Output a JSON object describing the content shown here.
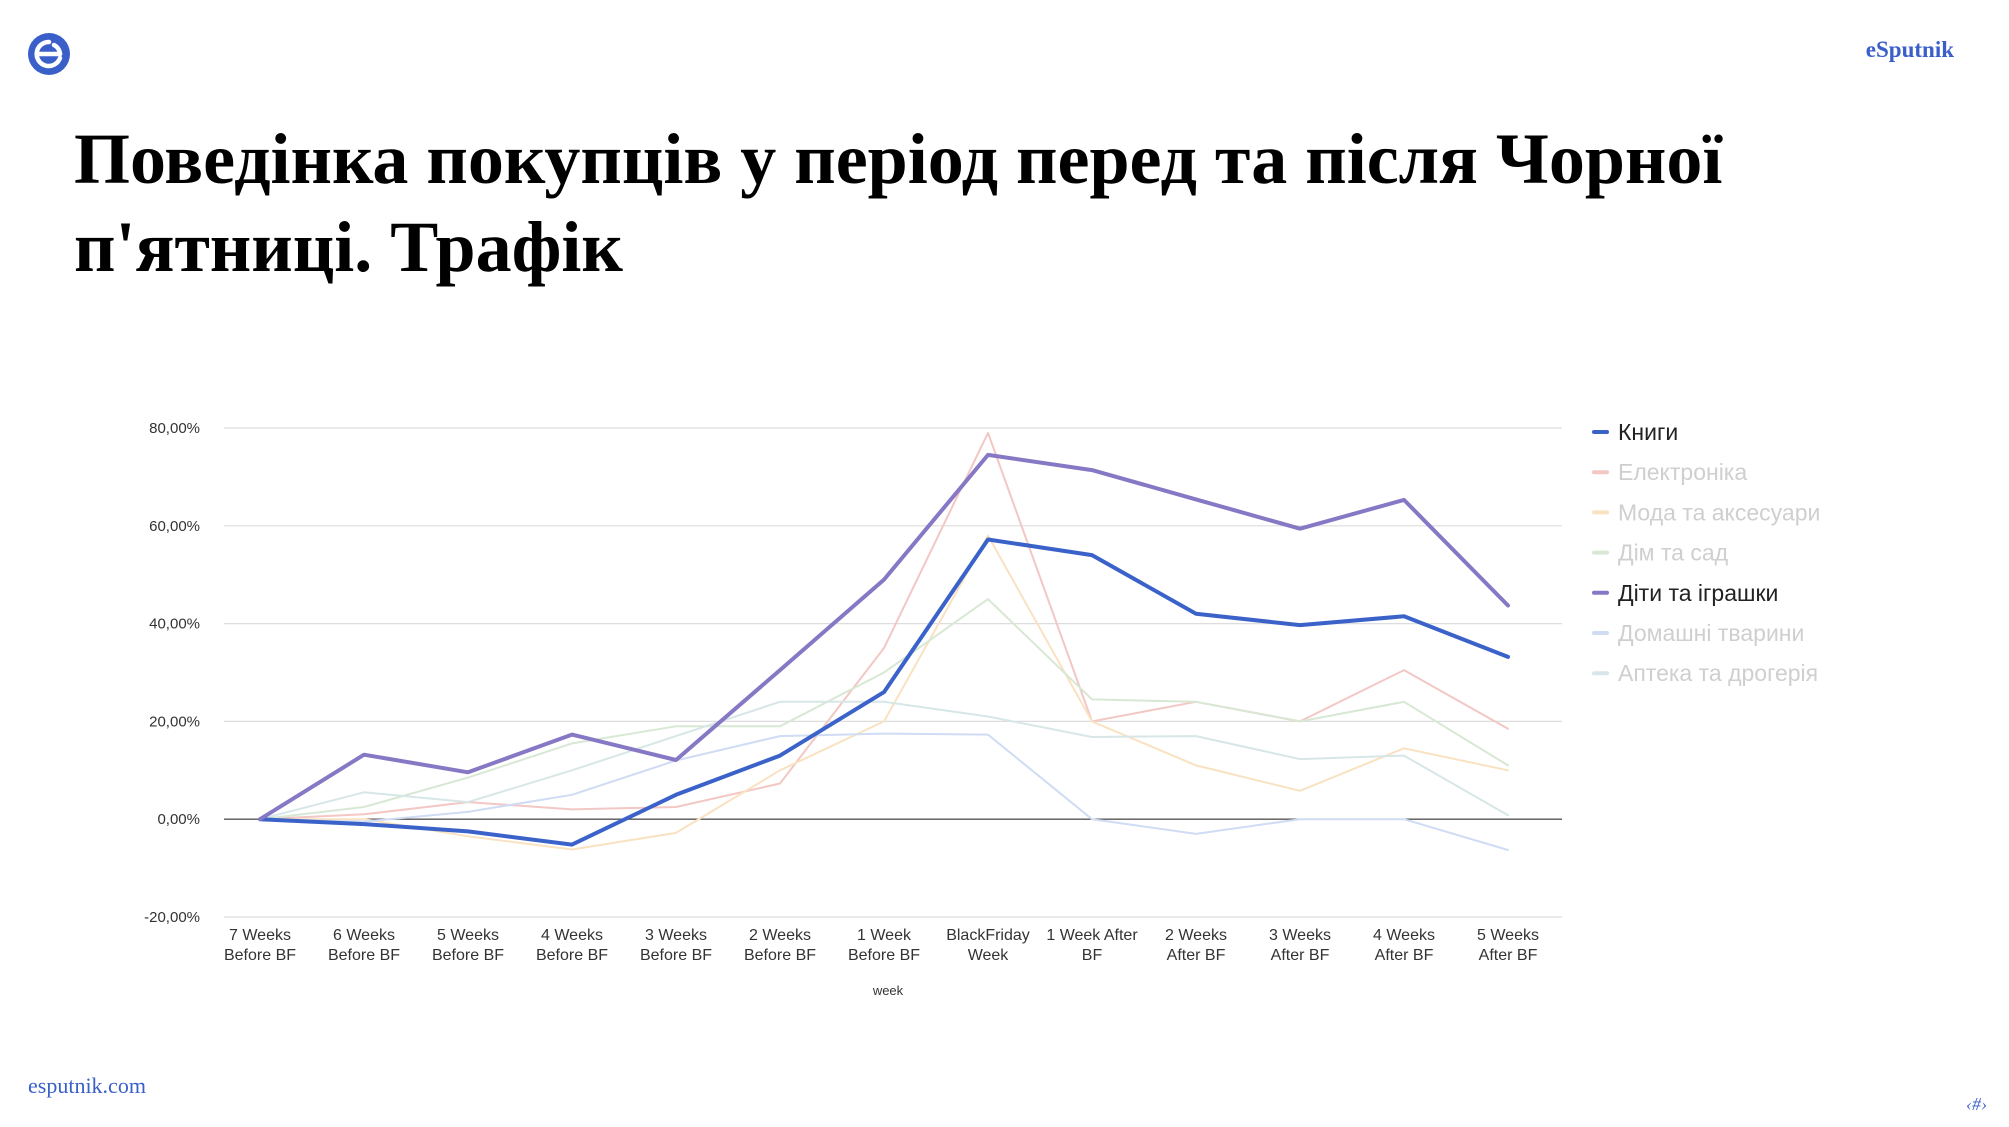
{
  "header": {
    "brand": "eSputnik",
    "logo_icon": "esputnik-logo-icon"
  },
  "title": "Поведінка покупців у період перед та після Чорної п'ятниці. Трафік",
  "footer": {
    "url": "esputnik.com",
    "page_number": "‹#›"
  },
  "colors": {
    "brand_blue": "#3a5fc8"
  },
  "chart_data": {
    "type": "line",
    "title": "",
    "xlabel": "week",
    "ylabel": "",
    "ylim": [
      -0.2,
      0.8
    ],
    "y_ticks": [
      {
        "value": -0.2,
        "label": "-20,00%"
      },
      {
        "value": 0,
        "label": "0,00%"
      },
      {
        "value": 0.2,
        "label": "20,00%"
      },
      {
        "value": 0.4,
        "label": "40,00%"
      },
      {
        "value": 0.6,
        "label": "60,00%"
      },
      {
        "value": 0.8,
        "label": "80,00%"
      }
    ],
    "grid": true,
    "legend_position": "right",
    "categories": [
      [
        "7 Weeks",
        "Before BF"
      ],
      [
        "6 Weeks",
        "Before BF"
      ],
      [
        "5 Weeks",
        "Before BF"
      ],
      [
        "4 Weeks",
        "Before BF"
      ],
      [
        "3 Weeks",
        "Before BF"
      ],
      [
        "2 Weeks",
        "Before BF"
      ],
      [
        "1 Week",
        "Before BF"
      ],
      [
        "BlackFriday",
        "Week"
      ],
      [
        "1 Week After",
        "BF"
      ],
      [
        "2 Weeks",
        "After BF"
      ],
      [
        "3 Weeks",
        "After BF"
      ],
      [
        "4 Weeks",
        "After BF"
      ],
      [
        "5 Weeks",
        "After BF"
      ]
    ],
    "series": [
      {
        "name": "Книги",
        "color": "#3a62c9",
        "emphasis": true,
        "values": [
          0,
          -0.01,
          -0.025,
          -0.052,
          0.05,
          0.13,
          0.26,
          0.572,
          0.54,
          0.42,
          0.397,
          0.415,
          0.332
        ]
      },
      {
        "name": "Електроніка",
        "color": "#f2c7c4",
        "emphasis": false,
        "values": [
          0,
          0.01,
          0.035,
          0.02,
          0.025,
          0.073,
          0.35,
          0.79,
          0.2,
          0.24,
          0.2,
          0.305,
          0.185
        ]
      },
      {
        "name": "Мода та аксесуари",
        "color": "#f9e2c1",
        "emphasis": false,
        "values": [
          0,
          0,
          -0.035,
          -0.062,
          -0.028,
          0.1,
          0.2,
          0.58,
          0.2,
          0.11,
          0.058,
          0.145,
          0.1
        ]
      },
      {
        "name": "Дім та сад",
        "color": "#d8e8d4",
        "emphasis": false,
        "values": [
          0,
          0.025,
          0.085,
          0.155,
          0.19,
          0.19,
          0.3,
          0.45,
          0.245,
          0.24,
          0.2,
          0.24,
          0.11
        ]
      },
      {
        "name": "Діти та іграшки",
        "color": "#8678c4",
        "emphasis": true,
        "values": [
          0,
          0.132,
          0.096,
          0.173,
          0.121,
          0.305,
          0.49,
          0.745,
          0.714,
          0.654,
          0.594,
          0.653,
          0.437
        ]
      },
      {
        "name": "Домашні тварини",
        "color": "#cfdcf4",
        "emphasis": false,
        "values": [
          0,
          -0.005,
          0.015,
          0.05,
          0.12,
          0.17,
          0.175,
          0.173,
          0.0,
          -0.03,
          0.0,
          0.0,
          -0.063
        ]
      },
      {
        "name": "Аптека та дрогерія",
        "color": "#d7e6e6",
        "emphasis": false,
        "values": [
          0,
          0.055,
          0.035,
          0.1,
          0.17,
          0.24,
          0.24,
          0.21,
          0.168,
          0.17,
          0.123,
          0.13,
          0.008
        ]
      }
    ]
  }
}
